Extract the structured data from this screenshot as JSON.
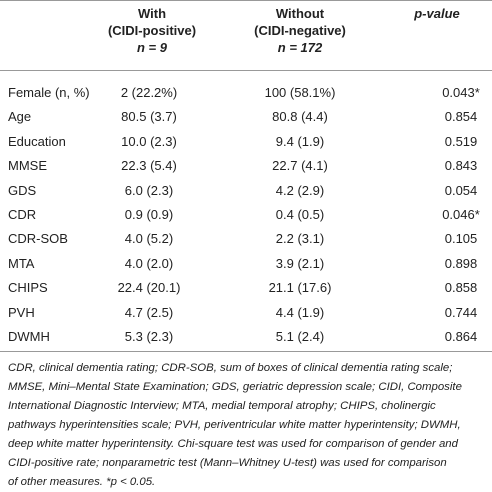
{
  "table": {
    "header": [
      [
        "",
        "With",
        "Without",
        "p-value"
      ],
      [
        "",
        "(CIDI-positive)",
        "(CIDI-negative)",
        ""
      ],
      [
        "",
        "n = 9",
        "n = 172",
        ""
      ]
    ],
    "rows": [
      [
        "Female (n, %)",
        "2 (22.2%)",
        "100 (58.1%)",
        "0.043*"
      ],
      [
        "Age",
        "80.5 (3.7)",
        "80.8 (4.4)",
        "0.854"
      ],
      [
        "Education",
        "10.0 (2.3)",
        "9.4 (1.9)",
        "0.519"
      ],
      [
        "MMSE",
        "22.3 (5.4)",
        "22.7 (4.1)",
        "0.843"
      ],
      [
        "GDS",
        "6.0 (2.3)",
        "4.2 (2.9)",
        "0.054"
      ],
      [
        "CDR",
        "0.9 (0.9)",
        "0.4 (0.5)",
        "0.046*"
      ],
      [
        "CDR-SOB",
        "4.0 (5.2)",
        "2.2 (3.1)",
        "0.105"
      ],
      [
        "MTA",
        "4.0 (2.0)",
        "3.9 (2.1)",
        "0.898"
      ],
      [
        "CHIPS",
        "22.4 (20.1)",
        "21.1 (17.6)",
        "0.858"
      ],
      [
        "PVH",
        "4.7 (2.5)",
        "4.4 (1.9)",
        "0.744"
      ],
      [
        "DWMH",
        "5.3 (2.3)",
        "5.1 (2.4)",
        "0.864"
      ]
    ]
  },
  "footnote": {
    "lines": [
      "CDR, clinical dementia rating; CDR-SOB, sum of boxes of clinical dementia rating scale;",
      "MMSE, Mini–Mental State Examination; GDS, geriatric depression scale; CIDI, Composite",
      "International Diagnostic Interview; MTA, medial temporal atrophy; CHIPS, cholinergic",
      "pathways hyperintensities scale; PVH, periventricular white matter hyperintensity; DWMH,",
      "deep white matter hyperintensity. Chi-square test was used for comparison of gender and",
      "CIDI-positive rate; nonparametric test (Mann–Whitney U-test) was used for comparison",
      "of other measures. *p < 0.05."
    ]
  }
}
